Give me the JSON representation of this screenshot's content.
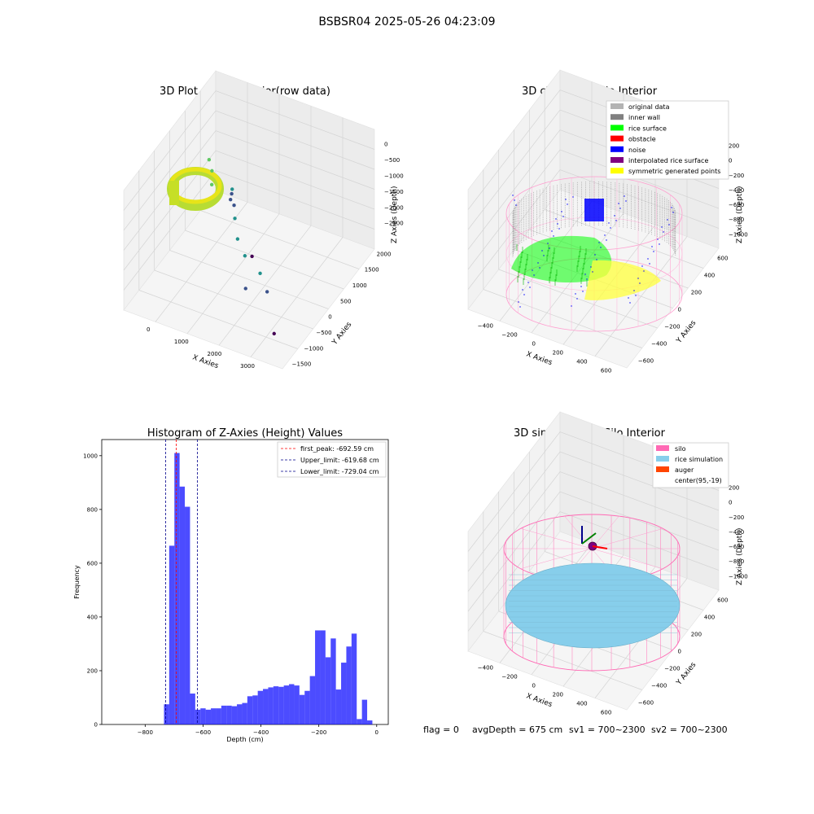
{
  "figure": {
    "suptitle": "BSBSR04 2025-05-26 04:23:09",
    "footer": {
      "flag": "flag = 0",
      "avg_depth": "avgDepth = 675 cm",
      "sv1": "sv1 = 700~2300",
      "sv2": "sv2 = 700~2300"
    }
  },
  "chart_data": [
    {
      "type": "scatter",
      "panel": "raw3d",
      "title": "3D Plot of Silo Interior(row data)",
      "xlabel": "X Axies",
      "ylabel": "Y Axies",
      "zlabel": "Z Axies (Depth)",
      "xticks": [
        "0",
        "1000",
        "2000",
        "3000"
      ],
      "yticks": [
        "2000",
        "1500",
        "1000",
        "500",
        "0",
        "−500",
        "−1000",
        "−1500"
      ],
      "zticks": [
        "0",
        "−500",
        "−1000",
        "−1500",
        "−2000",
        "−2500"
      ],
      "xlim": [
        -500,
        3500
      ],
      "ylim": [
        -1700,
        2300
      ],
      "zlim": [
        -2800,
        0
      ],
      "colormap": "viridis",
      "points": [
        {
          "x": 260,
          "y": 700,
          "z": -700
        },
        {
          "x": 420,
          "y": 550,
          "z": -800
        },
        {
          "x": 560,
          "y": 300,
          "z": -900
        },
        {
          "x": 900,
          "y": 600,
          "z": -1100
        },
        {
          "x": 1200,
          "y": 200,
          "z": -1400
        },
        {
          "x": 1500,
          "y": -200,
          "z": -1500
        },
        {
          "x": 1800,
          "y": -400,
          "z": -1650
        },
        {
          "x": 2300,
          "y": -600,
          "z": -1750
        },
        {
          "x": 2650,
          "y": -900,
          "z": -1850
        },
        {
          "x": 2050,
          "y": -800,
          "z": -2050
        },
        {
          "x": 600,
          "y": 1200,
          "z": -2000
        },
        {
          "x": 250,
          "y": 1700,
          "z": -2200
        },
        {
          "x": 250,
          "y": 1650,
          "z": -2300
        },
        {
          "x": 1400,
          "y": 600,
          "z": -2500
        },
        {
          "x": 3000,
          "y": -1200,
          "z": -2500
        }
      ]
    },
    {
      "type": "scatter",
      "panel": "classify3d",
      "title": "3D classify of Silo Interior",
      "xlabel": "X Axies",
      "ylabel": "Y Axies",
      "zlabel": "Z Axies (Depth)",
      "xticks": [
        "−400",
        "−200",
        "0",
        "200",
        "400",
        "600"
      ],
      "yticks": [
        "600",
        "400",
        "200",
        "0",
        "−200",
        "−400",
        "−600"
      ],
      "zticks": [
        "200",
        "0",
        "−200",
        "−400",
        "−600",
        "−800",
        "−1000"
      ],
      "xlim": [
        -500,
        700
      ],
      "ylim": [
        -700,
        700
      ],
      "zlim": [
        -1100,
        300
      ],
      "legend": [
        {
          "label": "original data",
          "color": "#b3b3b3"
        },
        {
          "label": "inner wall",
          "color": "#808080"
        },
        {
          "label": "rice surface",
          "color": "#00ff00"
        },
        {
          "label": "obstacle",
          "color": "#ff0000"
        },
        {
          "label": "noise",
          "color": "#0000ff"
        },
        {
          "label": "interpolated rice surface",
          "color": "#800080"
        },
        {
          "label": "symmetric generated points",
          "color": "#ffff00"
        }
      ]
    },
    {
      "type": "bar",
      "panel": "histogram",
      "title": "Histogram of Z-Axies (Height) Values",
      "xlabel": "Depth (cm)",
      "ylabel": "Frequency",
      "xlim": [
        -950,
        40
      ],
      "ylim": [
        0,
        1060
      ],
      "xticks": [
        -800,
        -600,
        -400,
        -200,
        0
      ],
      "xtick_labels": [
        "−800",
        "−600",
        "−400",
        "−200",
        "0"
      ],
      "yticks": [
        0,
        200,
        400,
        600,
        800,
        1000
      ],
      "yticks_labels": [
        "0",
        "200",
        "400",
        "600",
        "800",
        "1000"
      ],
      "bar_color": "#0000ff",
      "bin_edges": [
        -735,
        -717,
        -699,
        -681,
        -663,
        -645,
        -627,
        -609,
        -591,
        -573,
        -555,
        -537,
        -519,
        -501,
        -483,
        -465,
        -447,
        -429,
        -411,
        -393,
        -375,
        -357,
        -339,
        -321,
        -303,
        -285,
        -267,
        -249,
        -231,
        -213,
        -195,
        -177,
        -159,
        -141,
        -123,
        -105,
        -87,
        -69,
        -51,
        -33,
        -15,
        3
      ],
      "counts": [
        75,
        665,
        1010,
        885,
        810,
        115,
        55,
        60,
        55,
        60,
        60,
        70,
        70,
        68,
        75,
        80,
        105,
        108,
        125,
        132,
        138,
        142,
        140,
        145,
        150,
        145,
        110,
        125,
        180,
        350,
        350,
        250,
        320,
        130,
        230,
        290,
        338,
        20,
        92,
        15,
        0
      ],
      "vlines": [
        {
          "label": "first_peak: -692.59 cm",
          "x": -692.59,
          "color": "#ff0000"
        },
        {
          "label": "Upper_limit: -619.68 cm",
          "x": -619.68,
          "color": "#00008b"
        },
        {
          "label": "Lower_limit: -729.04 cm",
          "x": -729.04,
          "color": "#00008b"
        }
      ]
    },
    {
      "type": "scatter",
      "panel": "simulation3d",
      "title": "3D simulation of Silo Interior",
      "xlabel": "X Axies",
      "ylabel": "Y Axies",
      "zlabel": "Z Axies (Depth)",
      "xticks": [
        "−400",
        "−200",
        "0",
        "200",
        "400",
        "600"
      ],
      "yticks": [
        "600",
        "400",
        "200",
        "0",
        "−200",
        "−400",
        "−600"
      ],
      "zticks": [
        "200",
        "0",
        "−200",
        "−400",
        "−600",
        "−800",
        "−1000"
      ],
      "xlim": [
        -500,
        700
      ],
      "ylim": [
        -700,
        700
      ],
      "zlim": [
        -1100,
        300
      ],
      "legend": [
        {
          "label": "silo",
          "color": "#ff69b4"
        },
        {
          "label": "rice simulation",
          "color": "#87ceeb"
        },
        {
          "label": "auger",
          "color": "#ff4500"
        },
        {
          "label": "center(95,-19)",
          "color": ""
        }
      ]
    }
  ]
}
